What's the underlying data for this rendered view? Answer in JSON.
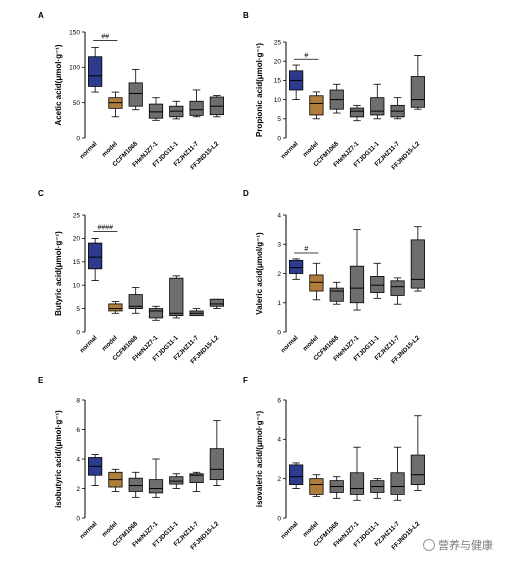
{
  "chart_data": [
    {
      "panel": "A",
      "type": "boxplot",
      "ylabel": "Acetic acid(μmol·g⁻¹)",
      "ylim": [
        0,
        150
      ],
      "yticks": [
        "0",
        "50",
        "100",
        "150"
      ],
      "significance": "##",
      "categories": [
        "normal",
        "model",
        "CCFM1068",
        "FHeNJZ7-1",
        "FTJDG11-1",
        "FZJHZ11-7",
        "FFJND15-L2"
      ],
      "boxes": [
        {
          "whisker_low": 65,
          "q1": 73,
          "median": 88,
          "q3": 115,
          "whisker_high": 128
        },
        {
          "whisker_low": 30,
          "q1": 42,
          "median": 50,
          "q3": 57,
          "whisker_high": 65
        },
        {
          "whisker_low": 40,
          "q1": 45,
          "median": 63,
          "q3": 78,
          "whisker_high": 97
        },
        {
          "whisker_low": 25,
          "q1": 28,
          "median": 37,
          "q3": 48,
          "whisker_high": 57
        },
        {
          "whisker_low": 27,
          "q1": 30,
          "median": 38,
          "q3": 45,
          "whisker_high": 52
        },
        {
          "whisker_low": 30,
          "q1": 32,
          "median": 40,
          "q3": 52,
          "whisker_high": 68
        },
        {
          "whisker_low": 30,
          "q1": 33,
          "median": 45,
          "q3": 58,
          "whisker_high": 60
        }
      ]
    },
    {
      "panel": "B",
      "type": "boxplot",
      "ylabel": "Propionic acid(μmol·g⁻¹)",
      "ylim": [
        0,
        25
      ],
      "yticks": [
        "0",
        "5",
        "10",
        "15",
        "20",
        "25"
      ],
      "significance": "#",
      "categories": [
        "normal",
        "model",
        "CCFM1068",
        "FHeNJZ7-1",
        "FTJDG11-1",
        "FZJHZ11-7",
        "FFJND15-L2"
      ],
      "boxes": [
        {
          "whisker_low": 10,
          "q1": 12.5,
          "median": 15,
          "q3": 17.5,
          "whisker_high": 19
        },
        {
          "whisker_low": 5,
          "q1": 6,
          "median": 9,
          "q3": 11,
          "whisker_high": 12
        },
        {
          "whisker_low": 6.5,
          "q1": 7.5,
          "median": 10,
          "q3": 12.5,
          "whisker_high": 14
        },
        {
          "whisker_low": 4.5,
          "q1": 5.5,
          "median": 7,
          "q3": 7.8,
          "whisker_high": 8.5
        },
        {
          "whisker_low": 5,
          "q1": 6,
          "median": 7,
          "q3": 10.5,
          "whisker_high": 14
        },
        {
          "whisker_low": 5,
          "q1": 5.5,
          "median": 7,
          "q3": 8.5,
          "whisker_high": 10.5
        },
        {
          "whisker_low": 7.5,
          "q1": 8,
          "median": 10,
          "q3": 16,
          "whisker_high": 21.5
        }
      ]
    },
    {
      "panel": "C",
      "type": "boxplot",
      "ylabel": "Butyric acid(μmol·g⁻¹)",
      "ylim": [
        0,
        25
      ],
      "yticks": [
        "0",
        "5",
        "10",
        "15",
        "20",
        "25"
      ],
      "significance": "####",
      "categories": [
        "normal",
        "model",
        "CCFM1068",
        "FHeNJZ7-1",
        "FTJDG11-1",
        "FZJHZ11-7",
        "FFJND15-L2"
      ],
      "boxes": [
        {
          "whisker_low": 11,
          "q1": 13.5,
          "median": 16,
          "q3": 19,
          "whisker_high": 20
        },
        {
          "whisker_low": 4,
          "q1": 4.5,
          "median": 5,
          "q3": 6,
          "whisker_high": 6.5
        },
        {
          "whisker_low": 4,
          "q1": 5,
          "median": 5.5,
          "q3": 8,
          "whisker_high": 9.5
        },
        {
          "whisker_low": 2.5,
          "q1": 3,
          "median": 4.5,
          "q3": 5,
          "whisker_high": 5.5
        },
        {
          "whisker_low": 3,
          "q1": 3.5,
          "median": 4,
          "q3": 11.5,
          "whisker_high": 12
        },
        {
          "whisker_low": 3.5,
          "q1": 3.5,
          "median": 4,
          "q3": 4.5,
          "whisker_high": 5
        },
        {
          "whisker_low": 5,
          "q1": 5.5,
          "median": 6,
          "q3": 7,
          "whisker_high": 7
        }
      ]
    },
    {
      "panel": "D",
      "type": "boxplot",
      "ylabel": "Valeric acid(μmol/g⁻¹)",
      "ylim": [
        0,
        4
      ],
      "yticks": [
        "0",
        "1",
        "2",
        "3",
        "4"
      ],
      "significance": "#",
      "categories": [
        "normal",
        "model",
        "CCFM1068",
        "FHeNJZ7-1",
        "FTJDG11-1",
        "FZJHZ11-7",
        "FFJND15-L2"
      ],
      "boxes": [
        {
          "whisker_low": 1.8,
          "q1": 2.0,
          "median": 2.2,
          "q3": 2.45,
          "whisker_high": 2.5
        },
        {
          "whisker_low": 1.1,
          "q1": 1.4,
          "median": 1.7,
          "q3": 1.95,
          "whisker_high": 2.35
        },
        {
          "whisker_low": 0.95,
          "q1": 1.05,
          "median": 1.4,
          "q3": 1.5,
          "whisker_high": 1.7
        },
        {
          "whisker_low": 0.75,
          "q1": 1.0,
          "median": 1.5,
          "q3": 2.25,
          "whisker_high": 3.5
        },
        {
          "whisker_low": 1.15,
          "q1": 1.35,
          "median": 1.6,
          "q3": 1.9,
          "whisker_high": 2.35
        },
        {
          "whisker_low": 0.95,
          "q1": 1.25,
          "median": 1.55,
          "q3": 1.75,
          "whisker_high": 1.85
        },
        {
          "whisker_low": 1.4,
          "q1": 1.5,
          "median": 1.8,
          "q3": 3.15,
          "whisker_high": 3.6
        }
      ]
    },
    {
      "panel": "E",
      "type": "boxplot",
      "ylabel": "isobutyric acid/(μmol·g⁻¹)",
      "ylim": [
        0,
        8
      ],
      "yticks": [
        "0",
        "2",
        "4",
        "6",
        "8"
      ],
      "categories": [
        "normal",
        "model",
        "CCFM1068",
        "FHeNJZ7-1",
        "FTJDG11-1",
        "FZJHZ11-7",
        "FFJND15-L2"
      ],
      "boxes": [
        {
          "whisker_low": 2.2,
          "q1": 2.9,
          "median": 3.5,
          "q3": 4.1,
          "whisker_high": 4.3
        },
        {
          "whisker_low": 1.8,
          "q1": 2.1,
          "median": 2.6,
          "q3": 3.1,
          "whisker_high": 3.3
        },
        {
          "whisker_low": 1.4,
          "q1": 1.8,
          "median": 2.2,
          "q3": 2.7,
          "whisker_high": 3.1
        },
        {
          "whisker_low": 1.4,
          "q1": 1.7,
          "median": 2.0,
          "q3": 2.6,
          "whisker_high": 4.0
        },
        {
          "whisker_low": 2.0,
          "q1": 2.3,
          "median": 2.5,
          "q3": 2.8,
          "whisker_high": 3.0
        },
        {
          "whisker_low": 1.8,
          "q1": 2.4,
          "median": 2.9,
          "q3": 3.0,
          "whisker_high": 3.1
        },
        {
          "whisker_low": 2.2,
          "q1": 2.6,
          "median": 3.3,
          "q3": 4.7,
          "whisker_high": 6.6
        }
      ]
    },
    {
      "panel": "F",
      "type": "boxplot",
      "ylabel": "isovaleric acid/(μmol·g⁻¹)",
      "ylim": [
        0,
        6
      ],
      "yticks": [
        "0",
        "2",
        "4",
        "6"
      ],
      "categories": [
        "normal",
        "model",
        "CCFM1068",
        "FHeNJZ7-1",
        "FTJDG11-1",
        "FZJHZ11-7",
        "FFJND15-L2"
      ],
      "boxes": [
        {
          "whisker_low": 1.5,
          "q1": 1.7,
          "median": 2.1,
          "q3": 2.7,
          "whisker_high": 2.8
        },
        {
          "whisker_low": 1.1,
          "q1": 1.2,
          "median": 1.7,
          "q3": 2.0,
          "whisker_high": 2.2
        },
        {
          "whisker_low": 1.0,
          "q1": 1.3,
          "median": 1.6,
          "q3": 1.9,
          "whisker_high": 2.1
        },
        {
          "whisker_low": 0.9,
          "q1": 1.2,
          "median": 1.5,
          "q3": 2.3,
          "whisker_high": 3.6
        },
        {
          "whisker_low": 1.0,
          "q1": 1.3,
          "median": 1.6,
          "q3": 1.9,
          "whisker_high": 2.0
        },
        {
          "whisker_low": 0.9,
          "q1": 1.2,
          "median": 1.6,
          "q3": 2.3,
          "whisker_high": 3.6
        },
        {
          "whisker_low": 1.4,
          "q1": 1.7,
          "median": 2.2,
          "q3": 3.2,
          "whisker_high": 5.2
        }
      ]
    }
  ],
  "colors": {
    "normal": "#2e3a8c",
    "model": "#b07d3a",
    "other": "#6e6e6e",
    "line": "#000000"
  },
  "watermark": "营养与健康",
  "watermark_icon": "wechat-icon"
}
